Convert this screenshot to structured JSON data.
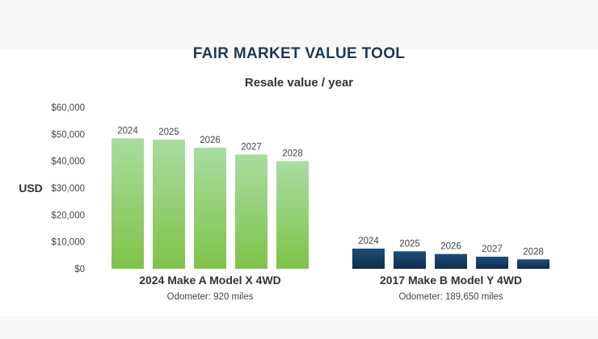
{
  "colors": {
    "title": "#1b3a57",
    "text": "#333333",
    "muted": "#444444",
    "green_top": "#a9dca0",
    "green_bottom": "#7fc349",
    "blue_top": "#1f4e79",
    "blue_bottom": "#0d2d4f"
  },
  "chart_data": {
    "type": "bar",
    "title": "FAIR MARKET VALUE TOOL",
    "subtitle": "Resale value / year",
    "ylabel": "USD",
    "ylim": [
      0,
      60000
    ],
    "yticks": [
      {
        "value": 0,
        "label": "$0"
      },
      {
        "value": 10000,
        "label": "$10,000"
      },
      {
        "value": 20000,
        "label": "$20,000"
      },
      {
        "value": 30000,
        "label": "$30,000"
      },
      {
        "value": 40000,
        "label": "$40,000"
      },
      {
        "value": 50000,
        "label": "$50,000"
      },
      {
        "value": 60000,
        "label": "$60,000"
      }
    ],
    "grid": false,
    "groups": [
      {
        "name": "2024 Make A Model X 4WD",
        "note": "Odometer: 920 miles",
        "color": "green",
        "bars": [
          {
            "label": "2024",
            "value": 48500
          },
          {
            "label": "2025",
            "value": 48000
          },
          {
            "label": "2026",
            "value": 45000
          },
          {
            "label": "2027",
            "value": 42500
          },
          {
            "label": "2028",
            "value": 40000
          }
        ]
      },
      {
        "name": "2017 Make B Model Y 4WD",
        "note": "Odometer: 189,650 miles",
        "color": "blue",
        "bars": [
          {
            "label": "2024",
            "value": 7500
          },
          {
            "label": "2025",
            "value": 6500
          },
          {
            "label": "2026",
            "value": 5500
          },
          {
            "label": "2027",
            "value": 4500
          },
          {
            "label": "2028",
            "value": 3500
          }
        ]
      }
    ]
  }
}
